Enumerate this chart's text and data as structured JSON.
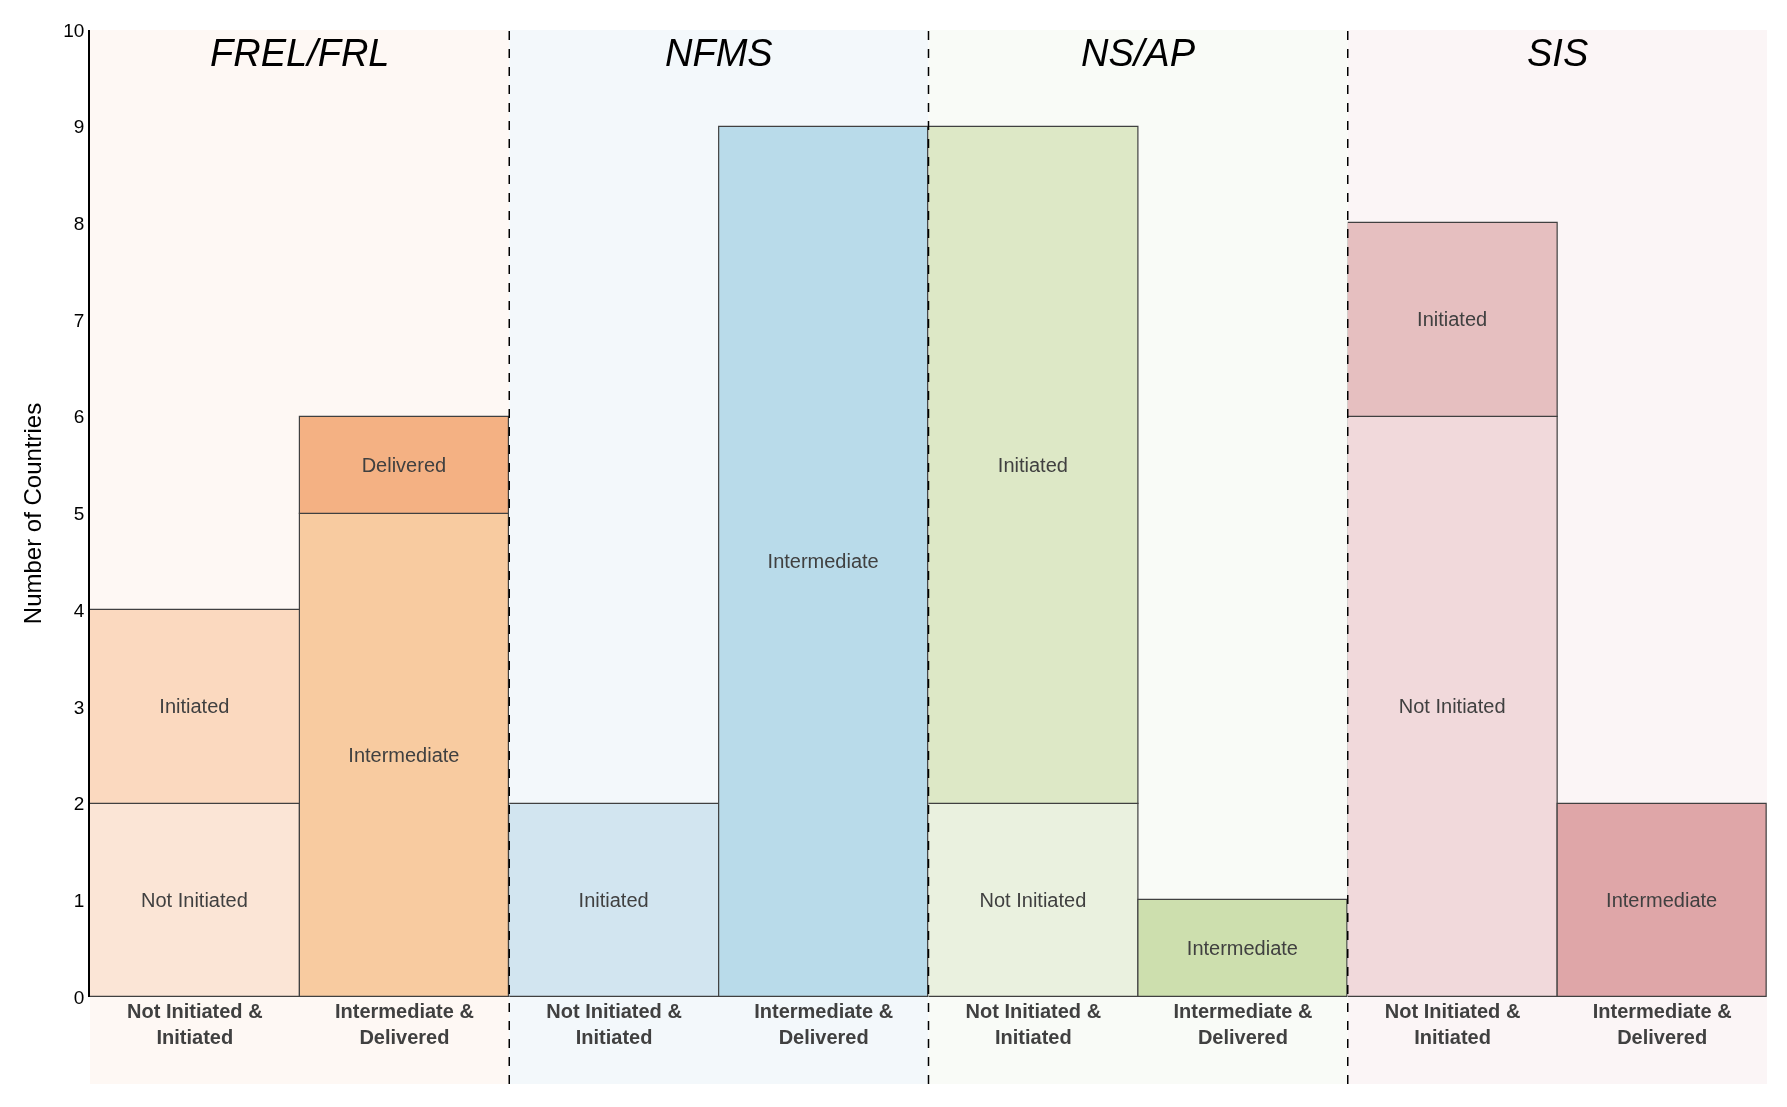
{
  "chart_data": [
    {
      "type": "bar",
      "title": "FREL/FRL",
      "ylabel": "Number of Countries",
      "stacked": true,
      "grid": false,
      "ylim": [
        0,
        10
      ],
      "yticks": [
        0,
        1,
        2,
        3,
        4,
        5,
        6,
        7,
        8,
        9,
        10
      ],
      "categories": [
        "Not Initiated & Initiated",
        "Intermediate & Delivered"
      ],
      "series": [
        {
          "values": [
            2,
            5
          ],
          "value_labels": [
            "Not Initiated",
            "Intermediate"
          ],
          "colors": [
            "#fbe5d6",
            "#f8cba0"
          ]
        },
        {
          "values": [
            2,
            1
          ],
          "value_labels": [
            "Initiated",
            "Delivered"
          ],
          "colors": [
            "#fbd9bf",
            "#f4b183"
          ]
        }
      ]
    },
    {
      "type": "bar",
      "title": "NFMS",
      "stacked": true,
      "grid": false,
      "tick_labels": "x",
      "ylim": [
        0,
        10
      ],
      "yticks": [
        0,
        1,
        2,
        3,
        4,
        5,
        6,
        7,
        8,
        9,
        10
      ],
      "categories": [
        "Not Initiated & Initiated",
        "Intermediate & Delivered"
      ],
      "series": [
        {
          "values": [
            2,
            9
          ],
          "value_labels": [
            "Initiated",
            "Intermediate"
          ],
          "colors": [
            "#d2e5f0",
            "#b9dbea"
          ]
        }
      ]
    },
    {
      "type": "bar",
      "title": "NS/AP",
      "stacked": true,
      "grid": false,
      "tick_labels": "x",
      "ylim": [
        0,
        10
      ],
      "yticks": [
        0,
        1,
        2,
        3,
        4,
        5,
        6,
        7,
        8,
        9,
        10
      ],
      "categories": [
        "Not Initiated & Initiated",
        "Intermediate & Delivered"
      ],
      "series": [
        {
          "values": [
            2,
            1
          ],
          "value_labels": [
            "Not Initiated",
            "Intermediate"
          ],
          "colors": [
            "#eaf1df",
            "#cddfae"
          ]
        },
        {
          "values": [
            7,
            null
          ],
          "value_labels": [
            "Initiated",
            null
          ],
          "colors": [
            "#dde8c6",
            "#cddfae"
          ]
        }
      ]
    },
    {
      "type": "bar",
      "title": "SIS",
      "stacked": true,
      "grid": false,
      "tick_labels": "x",
      "ylim": [
        0,
        10
      ],
      "yticks": [
        0,
        1,
        2,
        3,
        4,
        5,
        6,
        7,
        8,
        9,
        10
      ],
      "categories": [
        "Not Initiated & Initiated",
        "Intermediate & Delivered"
      ],
      "series": [
        {
          "values": [
            6,
            2
          ],
          "value_labels": [
            "Not Initiated",
            "Intermediate"
          ],
          "colors": [
            "#f1d9db",
            "#dfa6a8"
          ]
        },
        {
          "values": [
            2,
            null
          ],
          "value_labels": [
            "Initiated",
            null
          ],
          "colors": [
            "#e6bfc0",
            "#dfa6a8"
          ]
        }
      ]
    }
  ]
}
